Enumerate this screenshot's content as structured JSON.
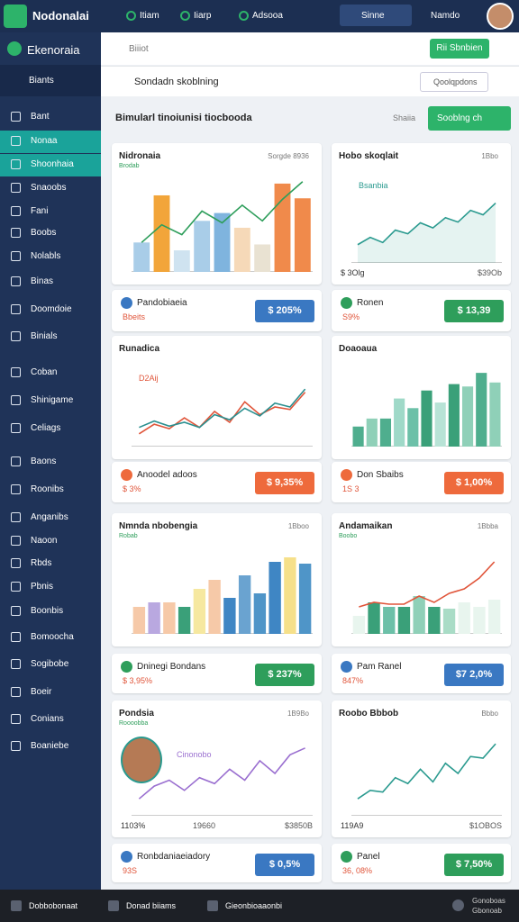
{
  "top_bar": {
    "brand": "Nodonalai",
    "nav": [
      "Itiam",
      "Iiarp",
      "Adsooa"
    ],
    "search": "Sinne",
    "user": "Namdo"
  },
  "sidebar": {
    "logo": "Ekenoraia",
    "section": "Biants",
    "items": [
      "Bant",
      "Nonaa",
      "Shoonhaia",
      "Snaoobs",
      "Fani",
      "Boobs",
      "Nolabls",
      "Binas",
      "Doomdoie",
      "Binials",
      "Coban",
      "Shinigame",
      "Celiags",
      "Baons",
      "Roonibs",
      "Anganibs",
      "Naoon",
      "Rbds",
      "Pbnis",
      "Boonbis",
      "Bomoocha",
      "Sogibobe",
      "Boeir",
      "Conians",
      "Boaniebe"
    ]
  },
  "header": {
    "hint": "Biiiot",
    "button": "Rii Sbnbien",
    "search": "Sondadn skoblning",
    "filter": "Qoolqpdons"
  },
  "page": {
    "title": "Bimularl tinoiunisi tiocbooda",
    "hint": "Shaiia",
    "button": "Sooblng ch"
  },
  "cards": [
    {
      "title": "Nidronaia",
      "sub": "Brodab",
      "meta": "Sorgde 8936",
      "type": "bar",
      "ylim": [
        0,
        100
      ],
      "values": [
        30,
        78,
        22,
        52,
        60,
        45,
        28,
        90,
        75
      ],
      "colors": [
        "#a9cde8",
        "#f2a53a",
        "#cfe3f0",
        "#a9cde8",
        "#7fb4de",
        "#f6d9b8",
        "#e9e2d2",
        "#f08a4b",
        "#f08a4b"
      ],
      "line": [
        30,
        48,
        38,
        62,
        50,
        68,
        52,
        74,
        92
      ],
      "line_color": "#2e9e5b",
      "stat": {
        "name": "Pandobiaeia",
        "sub": "Bbeits",
        "value": "$ 205%",
        "color": "#3a78c2"
      }
    },
    {
      "title": "Hobo skoqlait",
      "sub": "",
      "meta": "1Bbo",
      "type": "area",
      "ylim": [
        0,
        100
      ],
      "values": [
        25,
        35,
        28,
        45,
        40,
        55,
        48,
        62,
        56,
        72,
        66,
        82
      ],
      "color": "#2a9a8f",
      "legend": "Bsanbia",
      "footer": [
        "$ 3Olg",
        "$39Ob"
      ],
      "stat": {
        "name": "Ronen",
        "sub": "S9%",
        "value": "$ 13,39",
        "color": "#2e9e5b"
      }
    },
    {
      "title": "Runadica",
      "sub": "",
      "meta": "",
      "type": "line",
      "ylim": [
        0,
        100
      ],
      "values": [
        20,
        35,
        28,
        45,
        30,
        55,
        38,
        70,
        50,
        62,
        58,
        85
      ],
      "color": "#e0553a",
      "line": [
        30,
        40,
        32,
        38,
        30,
        50,
        42,
        60,
        48,
        68,
        62,
        90
      ],
      "line_color": "#2a8f8f",
      "legend": "D2Aij",
      "stat": {
        "name": "Anoodel adoos",
        "sub": "$ 3%",
        "value": "$ 9,35%",
        "color": "#ee6a3c"
      }
    },
    {
      "title": "Doaoaua",
      "sub": "",
      "meta": "",
      "type": "bar",
      "ylim": [
        0,
        100
      ],
      "values": [
        25,
        35,
        35,
        60,
        48,
        70,
        55,
        78,
        75,
        92,
        80
      ],
      "colors": [
        "#4fae8e",
        "#8fd0b8",
        "#4fae8e",
        "#9fd9c8",
        "#6cc0a8",
        "#3aa079",
        "#b8e3d6",
        "#3aa079",
        "#8fd0b8",
        "#4fae8e",
        "#8fd0b8"
      ],
      "stat": {
        "name": "Don Sbaibs",
        "sub": "1S 3",
        "value": "$ 1,00%",
        "color": "#ee6a3c"
      }
    },
    {
      "title": "Nmnda nbobengia",
      "sub": "Robab",
      "meta": "1Bboo",
      "type": "bar",
      "ylim": [
        0,
        100
      ],
      "values": [
        30,
        35,
        35,
        30,
        50,
        60,
        40,
        65,
        45,
        80,
        85,
        78
      ],
      "colors": [
        "#f6c9a8",
        "#b9a8e0",
        "#f6c9a8",
        "#3aa079",
        "#f6e8a0",
        "#f6c9a8",
        "#3f86c4",
        "#6aa3d0",
        "#4f95c8",
        "#3f86c4",
        "#f6e08a",
        "#4f95c8"
      ],
      "stat": {
        "name": "Dninegi Bondans",
        "sub": "$ 3,95%",
        "value": "$ 237%",
        "color": "#2e9e5b"
      }
    },
    {
      "title": "Andamaikan",
      "sub": "Boobo",
      "meta": "1Bbba",
      "type": "bar",
      "ylim": [
        0,
        100
      ],
      "values": [
        20,
        35,
        30,
        30,
        42,
        30,
        28,
        35,
        30,
        38
      ],
      "colors": [
        "#e8f5ee",
        "#3aa079",
        "#6cc0a8",
        "#3aa079",
        "#8fd0b8",
        "#3aa079",
        "#a9dcc6",
        "#e8f5ee",
        "#e8f5ee",
        "#e8f5ee"
      ],
      "line": [
        30,
        35,
        33,
        33,
        42,
        35,
        45,
        50,
        62,
        80
      ],
      "line_color": "#e0553a",
      "stat": {
        "name": "Pam Ranel",
        "sub": "847%",
        "value": "$7 2,0%",
        "color": "#3a78c2"
      }
    },
    {
      "title": "Pondsia",
      "sub": "Roooobba",
      "meta": "1B9Bo",
      "type": "line",
      "ylim": [
        0,
        100
      ],
      "values": [
        20,
        35,
        42,
        30,
        45,
        38,
        55,
        42,
        65,
        50,
        72,
        80
      ],
      "color": "#9a6fd0",
      "legend": "Cinonobo",
      "footer": [
        "1103%",
        "19660",
        "$3850B"
      ],
      "avatar": true,
      "stat": {
        "name": "Ronbdaniaeiadory",
        "sub": "93S",
        "value": "$ 0,5%",
        "color": "#3a78c2"
      }
    },
    {
      "title": "Roobo Bbbob",
      "sub": "",
      "meta": "Bbbo",
      "type": "line",
      "ylim": [
        0,
        100
      ],
      "values": [
        20,
        30,
        28,
        45,
        38,
        55,
        40,
        62,
        50,
        70,
        68,
        85
      ],
      "color": "#2a9a8f",
      "footer": [
        "119A9",
        "$1OBOS"
      ],
      "stat": {
        "name": "Panel",
        "sub": "36, 08%",
        "value": "$ 7,50%",
        "color": "#2e9e5b"
      }
    }
  ],
  "bottom_bar": {
    "items": [
      "Dobbobonaat",
      "Donad biiams",
      "Gieonbioaaonbi"
    ],
    "right": [
      "Gonoboas",
      "Gbonoab"
    ]
  }
}
